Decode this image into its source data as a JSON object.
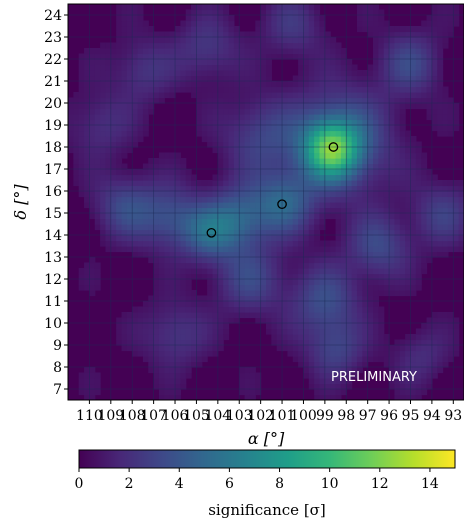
{
  "chart_data": {
    "type": "heatmap",
    "xlabel": "α [°]",
    "ylabel": "δ [°]",
    "colorbar_label": "significance [σ]",
    "watermark": "PRELIMINARY",
    "colormap": "viridis",
    "colors": [
      "#440154",
      "#482878",
      "#3e4989",
      "#31688e",
      "#26828e",
      "#1f9e89",
      "#35b779",
      "#6ece58",
      "#b5de2b",
      "#fde725"
    ],
    "xlim": [
      111,
      92.5
    ],
    "ylim": [
      6.5,
      24.5
    ],
    "x_ticks": [
      110,
      109,
      108,
      107,
      106,
      105,
      104,
      103,
      102,
      101,
      100,
      99,
      98,
      97,
      96,
      95,
      94,
      93
    ],
    "y_ticks": [
      7,
      8,
      9,
      10,
      11,
      12,
      13,
      14,
      15,
      16,
      17,
      18,
      19,
      20,
      21,
      22,
      23,
      24
    ],
    "grid": true,
    "colorbar_range": [
      0,
      15
    ],
    "colorbar_ticks": [
      0,
      2,
      4,
      6,
      8,
      10,
      12,
      14
    ],
    "sources": [
      {
        "x": 98.6,
        "y": 18.0
      },
      {
        "x": 101.0,
        "y": 15.4
      },
      {
        "x": 104.3,
        "y": 14.1
      }
    ],
    "hotspots": [
      {
        "x": 98.7,
        "y": 17.9,
        "value": 8.0,
        "spread": 0.9
      },
      {
        "x": 98.3,
        "y": 18.3,
        "value": 4.5,
        "spread": 1.6
      },
      {
        "x": 100.9,
        "y": 15.5,
        "value": 4.2,
        "spread": 1.0
      },
      {
        "x": 103.0,
        "y": 14.8,
        "value": 4.0,
        "spread": 1.0
      },
      {
        "x": 104.4,
        "y": 14.1,
        "value": 3.8,
        "spread": 0.9
      },
      {
        "x": 106.2,
        "y": 14.8,
        "value": 3.2,
        "spread": 1.0
      },
      {
        "x": 108.3,
        "y": 15.3,
        "value": 3.0,
        "spread": 1.0
      },
      {
        "x": 102.0,
        "y": 18.5,
        "value": 2.6,
        "spread": 1.2
      },
      {
        "x": 102.5,
        "y": 12.0,
        "value": 2.8,
        "spread": 1.1
      },
      {
        "x": 99.0,
        "y": 11.0,
        "value": 3.2,
        "spread": 1.1
      },
      {
        "x": 98.5,
        "y": 8.8,
        "value": 2.6,
        "spread": 0.9
      },
      {
        "x": 96.5,
        "y": 13.5,
        "value": 3.0,
        "spread": 1.0
      },
      {
        "x": 95.0,
        "y": 21.8,
        "value": 2.8,
        "spread": 1.0
      },
      {
        "x": 104.5,
        "y": 22.5,
        "value": 2.2,
        "spread": 1.0
      },
      {
        "x": 107.5,
        "y": 21.5,
        "value": 2.0,
        "spread": 1.0
      },
      {
        "x": 93.5,
        "y": 15.0,
        "value": 2.4,
        "spread": 1.0
      },
      {
        "x": 106.0,
        "y": 9.5,
        "value": 2.2,
        "spread": 1.0
      },
      {
        "x": 100.5,
        "y": 23.5,
        "value": 2.0,
        "spread": 1.0
      },
      {
        "x": 109.5,
        "y": 19.0,
        "value": 1.8,
        "spread": 1.0
      },
      {
        "x": 94.5,
        "y": 8.5,
        "value": 1.6,
        "spread": 0.9
      }
    ]
  }
}
